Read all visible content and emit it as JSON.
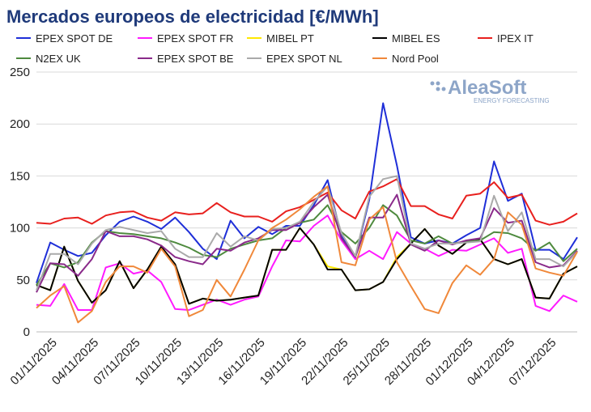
{
  "chart_data": {
    "type": "line",
    "title": "Mercados europeos de electricidad [€/MWh]",
    "logo": {
      "name": "AleaSoft",
      "tagline": "ENERGY FORECASTING"
    },
    "categories": [
      "01/11/2025",
      null,
      null,
      "04/11/2025",
      null,
      null,
      "07/11/2025",
      null,
      null,
      "10/11/2025",
      null,
      null,
      "13/11/2025",
      null,
      null,
      "16/11/2025",
      null,
      null,
      "19/11/2025",
      null,
      null,
      "22/11/2025",
      null,
      null,
      "25/11/2025",
      null,
      null,
      "28/11/2025",
      null,
      null,
      "01/12/2025",
      null,
      null,
      "04/12/2025",
      null,
      null,
      "07/12/2025",
      null,
      null,
      null
    ],
    "ylim": [
      0,
      250
    ],
    "yticks": [
      0,
      50,
      100,
      150,
      200,
      250
    ],
    "grid": true,
    "series": [
      {
        "name": "EPEX SPOT DE",
        "color": "#1f2fd8",
        "values": [
          47,
          86,
          79,
          73,
          76,
          93,
          106,
          111,
          106,
          99,
          110,
          96,
          80,
          70,
          107,
          90,
          101,
          94,
          102,
          102,
          122,
          146,
          92,
          72,
          127,
          220,
          160,
          91,
          85,
          88,
          85,
          93,
          100,
          164,
          126,
          133,
          79,
          79,
          70,
          91
        ]
      },
      {
        "name": "EPEX SPOT FR",
        "color": "#ff1aff",
        "values": [
          26,
          25,
          46,
          21,
          21,
          62,
          66,
          56,
          59,
          48,
          22,
          21,
          26,
          31,
          26,
          31,
          34,
          63,
          88,
          87,
          102,
          112,
          88,
          70,
          78,
          70,
          96,
          85,
          80,
          73,
          79,
          78,
          84,
          90,
          76,
          80,
          25,
          20,
          35,
          29
        ]
      },
      {
        "name": "MIBEL PT",
        "color": "#ffe800",
        "values": [
          45,
          40,
          82,
          49,
          28,
          40,
          68,
          42,
          60,
          82,
          65,
          27,
          32,
          30,
          31,
          33,
          35,
          79,
          79,
          100,
          84,
          63,
          60,
          40,
          41,
          48,
          72,
          85,
          99,
          83,
          75,
          86,
          89,
          70,
          65,
          70,
          33,
          32,
          56,
          63
        ]
      },
      {
        "name": "MIBEL ES",
        "color": "#000000",
        "values": [
          45,
          40,
          82,
          49,
          28,
          40,
          68,
          42,
          60,
          82,
          65,
          27,
          32,
          30,
          31,
          33,
          35,
          79,
          79,
          100,
          84,
          60,
          60,
          40,
          41,
          48,
          70,
          85,
          99,
          83,
          75,
          86,
          89,
          70,
          65,
          70,
          33,
          32,
          56,
          63
        ]
      },
      {
        "name": "IPEX IT",
        "color": "#e8201e",
        "values": [
          105,
          104,
          109,
          110,
          104,
          112,
          115,
          116,
          110,
          107,
          115,
          113,
          114,
          124,
          115,
          111,
          111,
          106,
          116,
          120,
          127,
          134,
          117,
          109,
          135,
          140,
          147,
          121,
          121,
          113,
          109,
          131,
          133,
          144,
          129,
          132,
          107,
          103,
          106,
          114
        ]
      },
      {
        "name": "N2EX UK",
        "color": "#4e8a3e",
        "values": [
          45,
          66,
          62,
          67,
          86,
          97,
          95,
          94,
          92,
          90,
          86,
          81,
          74,
          72,
          80,
          84,
          88,
          90,
          100,
          105,
          108,
          122,
          96,
          85,
          100,
          122,
          112,
          88,
          85,
          92,
          85,
          87,
          88,
          96,
          95,
          90,
          78,
          86,
          68,
          80
        ]
      },
      {
        "name": "EPEX SPOT BE",
        "color": "#8a2a8a",
        "values": [
          38,
          66,
          65,
          54,
          70,
          97,
          92,
          92,
          89,
          83,
          72,
          68,
          65,
          80,
          78,
          86,
          90,
          98,
          98,
          105,
          120,
          132,
          90,
          72,
          110,
          110,
          132,
          84,
          78,
          88,
          84,
          88,
          90,
          119,
          105,
          107,
          67,
          62,
          64,
          78
        ]
      },
      {
        "name": "EPEX SPOT NL",
        "color": "#aaaaaa",
        "values": [
          40,
          75,
          75,
          65,
          85,
          98,
          101,
          98,
          95,
          97,
          80,
          72,
          72,
          95,
          82,
          92,
          88,
          99,
          100,
          106,
          125,
          140,
          95,
          73,
          130,
          147,
          150,
          85,
          80,
          85,
          85,
          86,
          87,
          131,
          97,
          115,
          70,
          70,
          63,
          77
        ]
      },
      {
        "name": "Nord Pool",
        "color": "#f0883a",
        "values": [
          23,
          35,
          44,
          9,
          20,
          48,
          63,
          63,
          57,
          80,
          63,
          15,
          21,
          50,
          34,
          60,
          88,
          100,
          108,
          118,
          130,
          140,
          67,
          64,
          108,
          120,
          67,
          44,
          22,
          18,
          47,
          64,
          55,
          70,
          115,
          103,
          61,
          57,
          54,
          77
        ]
      }
    ]
  }
}
